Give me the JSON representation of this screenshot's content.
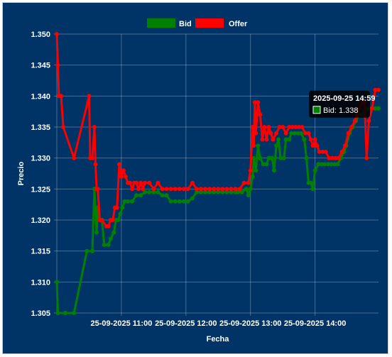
{
  "chart_data": {
    "type": "line",
    "title": "",
    "xlabel": "Fecha",
    "ylabel": "Precio",
    "ylim": [
      1.305,
      1.35
    ],
    "yticks": [
      "1.350",
      "1.345",
      "1.340",
      "1.335",
      "1.330",
      "1.325",
      "1.320",
      "1.315",
      "1.310",
      "1.305"
    ],
    "xtick_labels": [
      "25-09-2025 11:00",
      "25-09-2025 12:00",
      "25-09-2025 13:00",
      "25-09-2025 14:00"
    ],
    "xticks": [
      "2025-09-25 11:00",
      "2025-09-25 12:00",
      "2025-09-25 13:00",
      "2025-09-25 14:00"
    ],
    "x_range": [
      "2025-09-25 10:00",
      "2025-09-25 14:59"
    ],
    "grid": true,
    "legend_position": "top",
    "series": [
      {
        "name": "Bid",
        "color": "#008000",
        "points": [
          [
            "2025-09-25 10:00",
            1.31
          ],
          [
            "2025-09-25 10:01",
            1.305
          ],
          [
            "2025-09-25 10:08",
            1.305
          ],
          [
            "2025-09-25 10:16",
            1.305
          ],
          [
            "2025-09-25 10:28",
            1.315
          ],
          [
            "2025-09-25 10:33",
            1.315
          ],
          [
            "2025-09-25 10:35",
            1.325
          ],
          [
            "2025-09-25 10:37",
            1.318
          ],
          [
            "2025-09-25 10:38",
            1.322
          ],
          [
            "2025-09-25 10:40",
            1.32
          ],
          [
            "2025-09-25 10:42",
            1.32
          ],
          [
            "2025-09-25 10:44",
            1.316
          ],
          [
            "2025-09-25 10:48",
            1.316
          ],
          [
            "2025-09-25 10:50",
            1.317
          ],
          [
            "2025-09-25 10:53",
            1.318
          ],
          [
            "2025-09-25 10:55",
            1.32
          ],
          [
            "2025-09-25 10:57",
            1.32
          ],
          [
            "2025-09-25 10:59",
            1.321
          ],
          [
            "2025-09-25 11:01",
            1.322
          ],
          [
            "2025-09-25 11:03",
            1.323
          ],
          [
            "2025-09-25 11:06",
            1.323
          ],
          [
            "2025-09-25 11:10",
            1.323
          ],
          [
            "2025-09-25 11:14",
            1.324
          ],
          [
            "2025-09-25 11:18",
            1.324
          ],
          [
            "2025-09-25 11:22",
            1.3245
          ],
          [
            "2025-09-25 11:26",
            1.3245
          ],
          [
            "2025-09-25 11:30",
            1.3245
          ],
          [
            "2025-09-25 11:34",
            1.3245
          ],
          [
            "2025-09-25 11:38",
            1.324
          ],
          [
            "2025-09-25 11:42",
            1.324
          ],
          [
            "2025-09-25 11:46",
            1.323
          ],
          [
            "2025-09-25 11:50",
            1.323
          ],
          [
            "2025-09-25 11:54",
            1.323
          ],
          [
            "2025-09-25 11:58",
            1.323
          ],
          [
            "2025-09-25 12:02",
            1.323
          ],
          [
            "2025-09-25 12:06",
            1.3235
          ],
          [
            "2025-09-25 12:10",
            1.3245
          ],
          [
            "2025-09-25 12:14",
            1.3245
          ],
          [
            "2025-09-25 12:18",
            1.3245
          ],
          [
            "2025-09-25 12:22",
            1.3245
          ],
          [
            "2025-09-25 12:26",
            1.3245
          ],
          [
            "2025-09-25 12:30",
            1.3245
          ],
          [
            "2025-09-25 12:34",
            1.3245
          ],
          [
            "2025-09-25 12:38",
            1.3245
          ],
          [
            "2025-09-25 12:42",
            1.3245
          ],
          [
            "2025-09-25 12:46",
            1.3245
          ],
          [
            "2025-09-25 12:48",
            1.3245
          ],
          [
            "2025-09-25 12:52",
            1.3245
          ],
          [
            "2025-09-25 12:56",
            1.325
          ],
          [
            "2025-09-25 12:58",
            1.324
          ],
          [
            "2025-09-25 13:00",
            1.325
          ],
          [
            "2025-09-25 13:02",
            1.327
          ],
          [
            "2025-09-25 13:03",
            1.33
          ],
          [
            "2025-09-25 13:05",
            1.328
          ],
          [
            "2025-09-25 13:07",
            1.332
          ],
          [
            "2025-09-25 13:09",
            1.33
          ],
          [
            "2025-09-25 13:12",
            1.329
          ],
          [
            "2025-09-25 13:15",
            1.329
          ],
          [
            "2025-09-25 13:17",
            1.33
          ],
          [
            "2025-09-25 13:20",
            1.33
          ],
          [
            "2025-09-25 13:22",
            1.328
          ],
          [
            "2025-09-25 13:24",
            1.332
          ],
          [
            "2025-09-25 13:26",
            1.333
          ],
          [
            "2025-09-25 13:28",
            1.33
          ],
          [
            "2025-09-25 13:31",
            1.33
          ],
          [
            "2025-09-25 13:33",
            1.333
          ],
          [
            "2025-09-25 13:36",
            1.333
          ],
          [
            "2025-09-25 13:38",
            1.334
          ],
          [
            "2025-09-25 13:41",
            1.334
          ],
          [
            "2025-09-25 13:44",
            1.334
          ],
          [
            "2025-09-25 13:47",
            1.334
          ],
          [
            "2025-09-25 13:50",
            1.333
          ],
          [
            "2025-09-25 13:52",
            1.33
          ],
          [
            "2025-09-25 13:54",
            1.326
          ],
          [
            "2025-09-25 13:56",
            1.326
          ],
          [
            "2025-09-25 13:58",
            1.325
          ],
          [
            "2025-09-25 14:00",
            1.328
          ],
          [
            "2025-09-25 14:03",
            1.329
          ],
          [
            "2025-09-25 14:06",
            1.329
          ],
          [
            "2025-09-25 14:09",
            1.329
          ],
          [
            "2025-09-25 14:12",
            1.329
          ],
          [
            "2025-09-25 14:15",
            1.329
          ],
          [
            "2025-09-25 14:18",
            1.329
          ],
          [
            "2025-09-25 14:21",
            1.329
          ],
          [
            "2025-09-25 14:24",
            1.33
          ],
          [
            "2025-09-25 14:27",
            1.331
          ],
          [
            "2025-09-25 14:29",
            1.332
          ],
          [
            "2025-09-25 14:32",
            1.334
          ],
          [
            "2025-09-25 14:35",
            1.335
          ],
          [
            "2025-09-25 14:38",
            1.336
          ],
          [
            "2025-09-25 14:41",
            1.337
          ],
          [
            "2025-09-25 14:44",
            1.337
          ],
          [
            "2025-09-25 14:47",
            1.338
          ],
          [
            "2025-09-25 14:50",
            1.338
          ],
          [
            "2025-09-25 14:53",
            1.338
          ],
          [
            "2025-09-25 14:56",
            1.338
          ],
          [
            "2025-09-25 14:59",
            1.338
          ]
        ]
      },
      {
        "name": "Offer",
        "color": "#ff0000",
        "points": [
          [
            "2025-09-25 10:00",
            1.35
          ],
          [
            "2025-09-25 10:01",
            1.345
          ],
          [
            "2025-09-25 10:02",
            1.34
          ],
          [
            "2025-09-25 10:04",
            1.34
          ],
          [
            "2025-09-25 10:06",
            1.335
          ],
          [
            "2025-09-25 10:16",
            1.33
          ],
          [
            "2025-09-25 10:30",
            1.34
          ],
          [
            "2025-09-25 10:31",
            1.33
          ],
          [
            "2025-09-25 10:33",
            1.33
          ],
          [
            "2025-09-25 10:35",
            1.335
          ],
          [
            "2025-09-25 10:36",
            1.329
          ],
          [
            "2025-09-25 10:37",
            1.325
          ],
          [
            "2025-09-25 10:38",
            1.325
          ],
          [
            "2025-09-25 10:40",
            1.32
          ],
          [
            "2025-09-25 10:42",
            1.32
          ],
          [
            "2025-09-25 10:46",
            1.319
          ],
          [
            "2025-09-25 10:48",
            1.319
          ],
          [
            "2025-09-25 10:50",
            1.32
          ],
          [
            "2025-09-25 10:52",
            1.32
          ],
          [
            "2025-09-25 10:54",
            1.322
          ],
          [
            "2025-09-25 10:56",
            1.322
          ],
          [
            "2025-09-25 10:58",
            1.329
          ],
          [
            "2025-09-25 11:00",
            1.327
          ],
          [
            "2025-09-25 11:02",
            1.328
          ],
          [
            "2025-09-25 11:04",
            1.327
          ],
          [
            "2025-09-25 11:06",
            1.326
          ],
          [
            "2025-09-25 11:08",
            1.326
          ],
          [
            "2025-09-25 11:10",
            1.325
          ],
          [
            "2025-09-25 11:12",
            1.326
          ],
          [
            "2025-09-25 11:14",
            1.326
          ],
          [
            "2025-09-25 11:16",
            1.325
          ],
          [
            "2025-09-25 11:18",
            1.326
          ],
          [
            "2025-09-25 11:20",
            1.325
          ],
          [
            "2025-09-25 11:22",
            1.326
          ],
          [
            "2025-09-25 11:26",
            1.326
          ],
          [
            "2025-09-25 11:30",
            1.325
          ],
          [
            "2025-09-25 11:34",
            1.326
          ],
          [
            "2025-09-25 11:38",
            1.325
          ],
          [
            "2025-09-25 11:42",
            1.325
          ],
          [
            "2025-09-25 11:46",
            1.325
          ],
          [
            "2025-09-25 11:50",
            1.325
          ],
          [
            "2025-09-25 11:54",
            1.325
          ],
          [
            "2025-09-25 11:58",
            1.325
          ],
          [
            "2025-09-25 12:02",
            1.325
          ],
          [
            "2025-09-25 12:06",
            1.326
          ],
          [
            "2025-09-25 12:10",
            1.325
          ],
          [
            "2025-09-25 12:14",
            1.325
          ],
          [
            "2025-09-25 12:18",
            1.325
          ],
          [
            "2025-09-25 12:22",
            1.325
          ],
          [
            "2025-09-25 12:26",
            1.325
          ],
          [
            "2025-09-25 12:30",
            1.325
          ],
          [
            "2025-09-25 12:34",
            1.325
          ],
          [
            "2025-09-25 12:38",
            1.325
          ],
          [
            "2025-09-25 12:42",
            1.325
          ],
          [
            "2025-09-25 12:46",
            1.325
          ],
          [
            "2025-09-25 12:50",
            1.325
          ],
          [
            "2025-09-25 12:54",
            1.326
          ],
          [
            "2025-09-25 12:58",
            1.326
          ],
          [
            "2025-09-25 13:00",
            1.328
          ],
          [
            "2025-09-25 13:02",
            1.335
          ],
          [
            "2025-09-25 13:03",
            1.332
          ],
          [
            "2025-09-25 13:04",
            1.339
          ],
          [
            "2025-09-25 13:05",
            1.334
          ],
          [
            "2025-09-25 13:07",
            1.339
          ],
          [
            "2025-09-25 13:09",
            1.337
          ],
          [
            "2025-09-25 13:11",
            1.333
          ],
          [
            "2025-09-25 13:13",
            1.335
          ],
          [
            "2025-09-25 13:15",
            1.333
          ],
          [
            "2025-09-25 13:17",
            1.335
          ],
          [
            "2025-09-25 13:19",
            1.334
          ],
          [
            "2025-09-25 13:21",
            1.333
          ],
          [
            "2025-09-25 13:24",
            1.334
          ],
          [
            "2025-09-25 13:27",
            1.335
          ],
          [
            "2025-09-25 13:30",
            1.335
          ],
          [
            "2025-09-25 13:33",
            1.334
          ],
          [
            "2025-09-25 13:36",
            1.335
          ],
          [
            "2025-09-25 13:39",
            1.335
          ],
          [
            "2025-09-25 13:42",
            1.335
          ],
          [
            "2025-09-25 13:45",
            1.335
          ],
          [
            "2025-09-25 13:48",
            1.335
          ],
          [
            "2025-09-25 13:51",
            1.334
          ],
          [
            "2025-09-25 13:54",
            1.334
          ],
          [
            "2025-09-25 13:56",
            1.333
          ],
          [
            "2025-09-25 13:58",
            1.332
          ],
          [
            "2025-09-25 14:00",
            1.333
          ],
          [
            "2025-09-25 14:02",
            1.332
          ],
          [
            "2025-09-25 14:04",
            1.331
          ],
          [
            "2025-09-25 14:07",
            1.331
          ],
          [
            "2025-09-25 14:10",
            1.331
          ],
          [
            "2025-09-25 14:13",
            1.33
          ],
          [
            "2025-09-25 14:16",
            1.33
          ],
          [
            "2025-09-25 14:19",
            1.33
          ],
          [
            "2025-09-25 14:22",
            1.33
          ],
          [
            "2025-09-25 14:25",
            1.331
          ],
          [
            "2025-09-25 14:28",
            1.332
          ],
          [
            "2025-09-25 14:31",
            1.334
          ],
          [
            "2025-09-25 14:34",
            1.335
          ],
          [
            "2025-09-25 14:37",
            1.336
          ],
          [
            "2025-09-25 14:39",
            1.337
          ],
          [
            "2025-09-25 14:41",
            1.338
          ],
          [
            "2025-09-25 14:44",
            1.339
          ],
          [
            "2025-09-25 14:46",
            1.339
          ],
          [
            "2025-09-25 14:48",
            1.33
          ],
          [
            "2025-09-25 14:50",
            1.336
          ],
          [
            "2025-09-25 14:53",
            1.338
          ],
          [
            "2025-09-25 14:56",
            1.341
          ],
          [
            "2025-09-25 14:59",
            1.341
          ]
        ]
      }
    ],
    "tooltip": {
      "title": "2025-09-25 14:59",
      "text": "Bid: 1.338",
      "series": "Bid",
      "x": "2025-09-25 14:59",
      "value": 1.338
    }
  },
  "colors": {
    "background": "#003366",
    "grid": "rgba(255,255,255,0.28)",
    "text": "#ffffff"
  }
}
